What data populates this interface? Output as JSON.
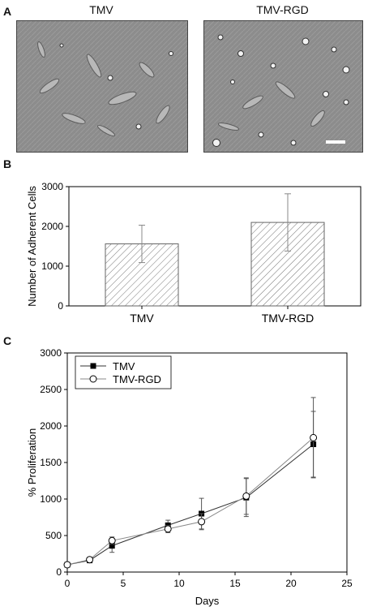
{
  "panels": {
    "a": {
      "label": "A",
      "images": [
        {
          "title": "TMV"
        },
        {
          "title": "TMV-RGD"
        }
      ],
      "scale_bar_color": "#ffffff"
    },
    "b": {
      "label": "B"
    },
    "c": {
      "label": "C"
    }
  },
  "chart_data": [
    {
      "type": "bar",
      "categories": [
        "TMV",
        "TMV-RGD"
      ],
      "values": [
        1560,
        2100
      ],
      "errors": [
        470,
        720
      ],
      "ylabel": "Number of Adherent Cells",
      "ylim": [
        0,
        3000
      ],
      "yticks": [
        0,
        1000,
        2000,
        3000
      ],
      "bar_fill": "hatched-gray"
    },
    {
      "type": "line",
      "xlabel": "Days",
      "ylabel": "% Proliferation",
      "xlim": [
        0,
        25
      ],
      "ylim": [
        0,
        3000
      ],
      "xticks": [
        0,
        5,
        10,
        15,
        20,
        25
      ],
      "yticks": [
        0,
        500,
        1000,
        1500,
        2000,
        2500,
        3000
      ],
      "legend_position": "top-left",
      "series": [
        {
          "name": "TMV",
          "marker": "filled-square",
          "x": [
            0,
            2,
            4,
            9,
            12,
            16,
            22
          ],
          "y": [
            100,
            160,
            360,
            640,
            800,
            1020,
            1750
          ],
          "err": [
            0,
            30,
            90,
            70,
            210,
            260,
            450
          ]
        },
        {
          "name": "TMV-RGD",
          "marker": "open-circle",
          "x": [
            0,
            2,
            4,
            9,
            12,
            16,
            22
          ],
          "y": [
            100,
            170,
            430,
            590,
            690,
            1040,
            1840
          ],
          "err": [
            0,
            30,
            50,
            50,
            110,
            250,
            550
          ]
        }
      ]
    }
  ]
}
